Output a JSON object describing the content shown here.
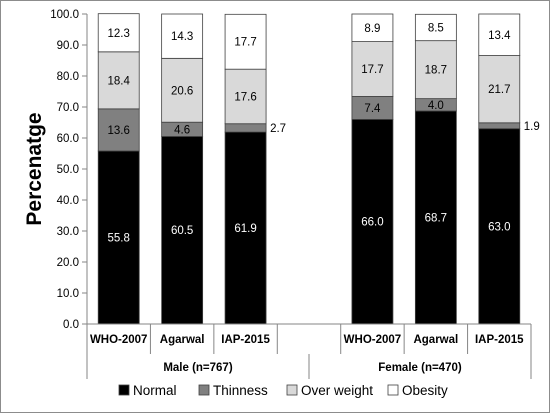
{
  "chart_data": {
    "type": "bar",
    "stacked": true,
    "ylabel": "Percenatge",
    "ylim": [
      0,
      100
    ],
    "yticks": [
      "0.0",
      "10.0",
      "20.0",
      "30.0",
      "40.0",
      "50.0",
      "60.0",
      "70.0",
      "80.0",
      "90.0",
      "100.0"
    ],
    "groups": [
      {
        "label": "Male (n=767)",
        "categories": [
          "WHO-2007",
          "Agarwal",
          "IAP-2015"
        ]
      },
      {
        "label": "Female (n=470)",
        "categories": [
          "WHO-2007",
          "Agarwal",
          "IAP-2015"
        ]
      }
    ],
    "categories": [
      "WHO-2007",
      "Agarwal",
      "IAP-2015",
      "WHO-2007",
      "Agarwal",
      "IAP-2015"
    ],
    "series": [
      {
        "name": "Normal",
        "color": "#000000",
        "values": [
          55.8,
          60.5,
          61.9,
          66.0,
          68.7,
          63.0
        ],
        "labels": [
          "55.8",
          "60.5",
          "61.9",
          "66.0",
          "68.7",
          "63.0"
        ]
      },
      {
        "name": "Thinness",
        "color": "#808080",
        "values": [
          13.6,
          4.6,
          2.7,
          7.4,
          4.0,
          1.9
        ],
        "labels": [
          "13.6",
          "4.6",
          "2.7",
          "7.4",
          "4.0",
          "1.9"
        ]
      },
      {
        "name": "Over weight",
        "color": "#d9d9d9",
        "values": [
          18.4,
          20.6,
          17.6,
          17.7,
          18.7,
          21.7
        ],
        "labels": [
          "18.4",
          "20.6",
          "17.6",
          "17.7",
          "18.7",
          "21.7"
        ]
      },
      {
        "name": "Obesity",
        "color": "#ffffff",
        "values": [
          12.3,
          14.3,
          17.7,
          8.9,
          8.5,
          13.4
        ],
        "labels": [
          "12.3",
          "14.3",
          "17.7",
          "8.9",
          "8.5",
          "13.4"
        ]
      }
    ],
    "legend_position": "bottom"
  }
}
